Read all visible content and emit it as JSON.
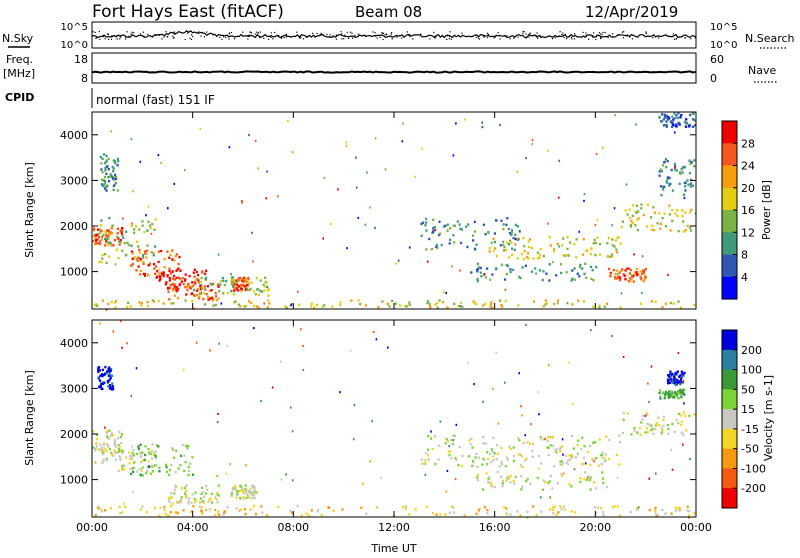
{
  "header": {
    "title": "Fort Hays East (fitACF)",
    "beam": "Beam 08",
    "date": "12/Apr/2019"
  },
  "nsky_panel": {
    "left_label": "N.Sky",
    "right_label": "N.Search",
    "ticks_left": [
      "10^5",
      "10^0"
    ],
    "ticks_right": [
      "10^5",
      "10^0"
    ]
  },
  "freq_panel": {
    "left_label_1": "Freq.",
    "left_label_2": "[MHz]",
    "right_label": "Nave",
    "ticks_left": [
      "18",
      "8"
    ],
    "ticks_right": [
      "60",
      "0"
    ]
  },
  "cpid": {
    "label": "CPID",
    "mode": "normal (fast) 151 IF"
  },
  "chart_data": [
    {
      "type": "heatmap",
      "name": "power",
      "ylabel": "Slant Range [km]",
      "x_ticks": [
        "00:00",
        "04:00",
        "08:00",
        "12:00",
        "16:00",
        "20:00",
        "00:00"
      ],
      "y_ticks": [
        1000,
        2000,
        3000,
        4000
      ],
      "xlim_hours": [
        0,
        24
      ],
      "ylim_km": [
        180,
        4500
      ],
      "colorbar": {
        "label": "Power [dB]",
        "ticks": [
          4,
          8,
          12,
          16,
          20,
          24,
          28
        ],
        "colors": [
          "#0000ff",
          "#2e58b4",
          "#409a7a",
          "#7bb346",
          "#e2cd11",
          "#f79e10",
          "#f5571e",
          "#ec0000"
        ]
      },
      "regions": [
        {
          "t0": 0.0,
          "t1": 1.2,
          "r0": 1600,
          "r1": 2000,
          "level": 6
        },
        {
          "t0": 0.2,
          "t1": 2.5,
          "r0": 1200,
          "r1": 2200,
          "level": 3
        },
        {
          "t0": 0.3,
          "t1": 1.0,
          "r0": 2800,
          "r1": 3600,
          "level": 2
        },
        {
          "t0": 1.5,
          "t1": 3.5,
          "r0": 900,
          "r1": 1500,
          "level": 6
        },
        {
          "t0": 2.5,
          "t1": 4.5,
          "r0": 600,
          "r1": 1100,
          "level": 7
        },
        {
          "t0": 3.0,
          "t1": 5.0,
          "r0": 400,
          "r1": 800,
          "level": 6
        },
        {
          "t0": 5.5,
          "t1": 6.2,
          "r0": 600,
          "r1": 900,
          "level": 6
        },
        {
          "t0": 4.0,
          "t1": 7.0,
          "r0": 500,
          "r1": 900,
          "level": 3
        },
        {
          "t0": 0.0,
          "t1": 24.0,
          "r0": 180,
          "r1": 400,
          "level": 4
        },
        {
          "t0": 13.0,
          "t1": 17.0,
          "r0": 1500,
          "r1": 2200,
          "level": 2
        },
        {
          "t0": 15.5,
          "t1": 21.0,
          "r0": 1300,
          "r1": 1800,
          "level": 4
        },
        {
          "t0": 15.0,
          "t1": 20.0,
          "r0": 800,
          "r1": 1200,
          "level": 2
        },
        {
          "t0": 20.5,
          "t1": 22.0,
          "r0": 800,
          "r1": 1100,
          "level": 6
        },
        {
          "t0": 21.0,
          "t1": 24.0,
          "r0": 1900,
          "r1": 2500,
          "level": 4
        },
        {
          "t0": 22.5,
          "t1": 24.0,
          "r0": 2700,
          "r1": 3500,
          "level": 2
        },
        {
          "t0": 22.5,
          "t1": 24.0,
          "r0": 4200,
          "r1": 4500,
          "level": 1
        }
      ]
    },
    {
      "type": "heatmap",
      "name": "velocity",
      "ylabel": "Slant Range [km]",
      "xlabel": "Time UT",
      "x_ticks": [
        "00:00",
        "04:00",
        "08:00",
        "12:00",
        "16:00",
        "20:00",
        "00:00"
      ],
      "y_ticks": [
        1000,
        2000,
        3000,
        4000
      ],
      "xlim_hours": [
        0,
        24
      ],
      "ylim_km": [
        180,
        4500
      ],
      "colorbar": {
        "label": "Velocity [m s-1]",
        "ticks": [
          200,
          100,
          50,
          15,
          -15,
          -50,
          -100,
          -200
        ],
        "colors": [
          "#0000dc",
          "#2c7fa0",
          "#3a9a38",
          "#7cd33a",
          "#c8c8c0",
          "#f3d428",
          "#f59a10",
          "#f55a10",
          "#ec0000"
        ]
      },
      "regions": [
        {
          "t0": 0.0,
          "t1": 1.2,
          "r0": 1600,
          "r1": 2100,
          "level": 4
        },
        {
          "t0": 0.3,
          "t1": 2.5,
          "r0": 1200,
          "r1": 1700,
          "level": 4
        },
        {
          "t0": 0.2,
          "t1": 0.8,
          "r0": 3000,
          "r1": 3500,
          "level": 0
        },
        {
          "t0": 1.5,
          "t1": 4.0,
          "r0": 1100,
          "r1": 1800,
          "level": 3
        },
        {
          "t0": 3.0,
          "t1": 5.0,
          "r0": 500,
          "r1": 900,
          "level": 4
        },
        {
          "t0": 5.5,
          "t1": 6.5,
          "r0": 600,
          "r1": 900,
          "level": 4
        },
        {
          "t0": 0.0,
          "t1": 24.0,
          "r0": 180,
          "r1": 450,
          "level": 5
        },
        {
          "t0": 13.0,
          "t1": 21.0,
          "r0": 1300,
          "r1": 2000,
          "level": 4
        },
        {
          "t0": 15.0,
          "t1": 20.5,
          "r0": 800,
          "r1": 1200,
          "level": 4
        },
        {
          "t0": 21.0,
          "t1": 24.0,
          "r0": 2000,
          "r1": 2500,
          "level": 4
        },
        {
          "t0": 22.8,
          "t1": 23.5,
          "r0": 3100,
          "r1": 3400,
          "level": 0
        },
        {
          "t0": 22.5,
          "t1": 23.5,
          "r0": 2800,
          "r1": 3000,
          "level": 2
        }
      ]
    }
  ]
}
